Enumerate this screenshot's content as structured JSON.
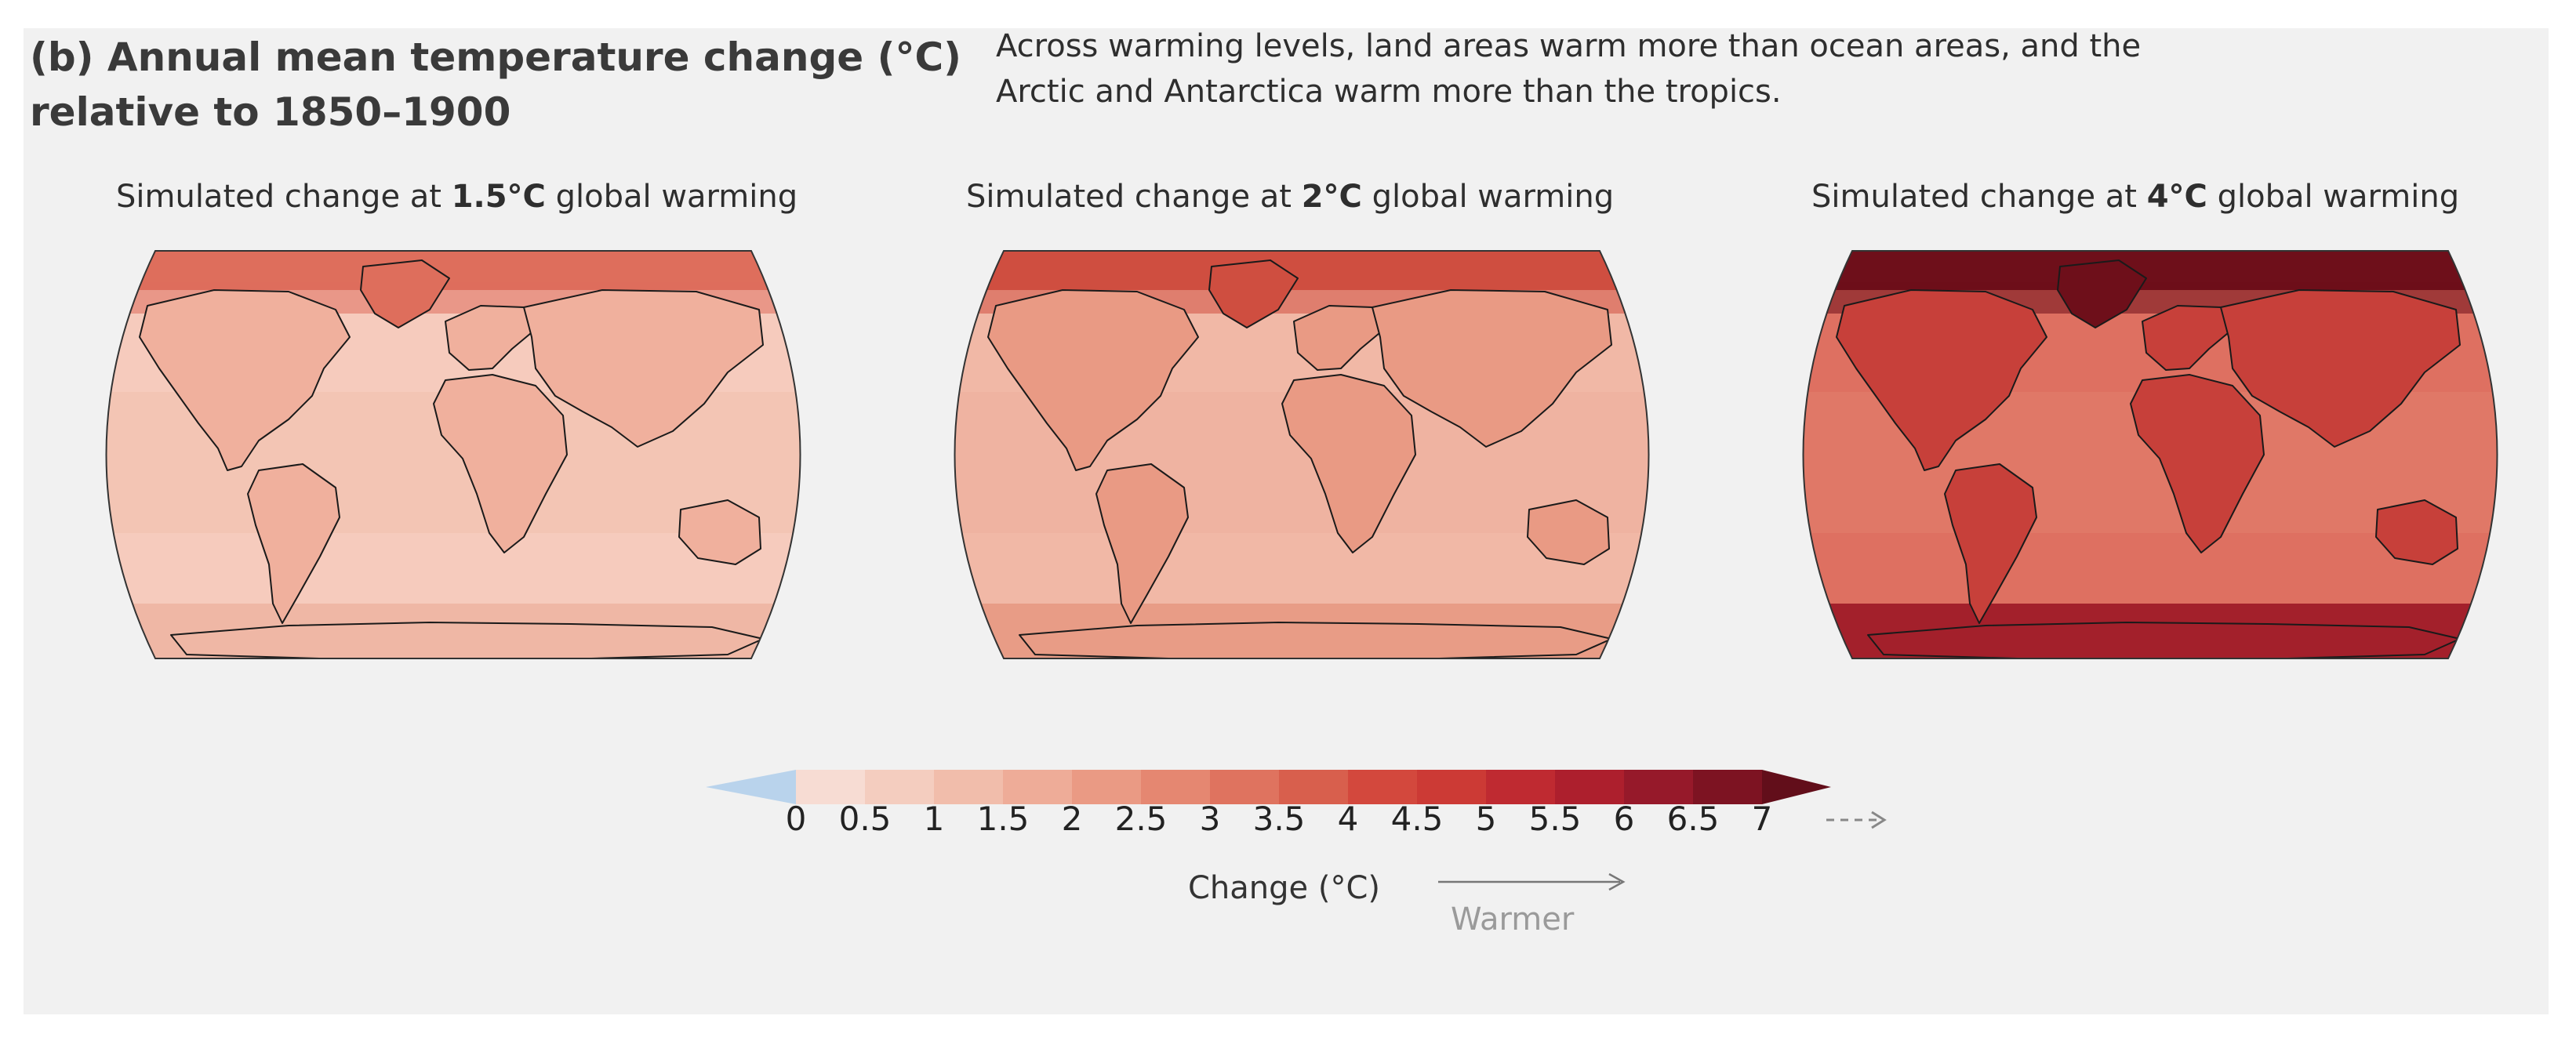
{
  "title": {
    "line1": "(b) Annual mean temperature change (°C)",
    "line2": "relative to 1850–1900"
  },
  "caption": {
    "line1": "Across warming levels, land areas warm more than ocean areas, and the",
    "line2": "Arctic and Antarctica warm more than the tropics."
  },
  "maps": [
    {
      "label_prefix": "Simulated change at ",
      "label_level": "1.5°C",
      "label_suffix": " global warming",
      "warming_level_c": 1.5,
      "colors": {
        "ocean": "#f6cbbd",
        "tropic_ocean": "#f3c3b2",
        "land": "#f0b09d",
        "arctic": "#de6e5c",
        "antarctic": "#efb7a5"
      }
    },
    {
      "label_prefix": "Simulated change at ",
      "label_level": "2°C",
      "label_suffix": " global warming",
      "warming_level_c": 2,
      "colors": {
        "ocean": "#f1b8a6",
        "tropic_ocean": "#efb2a0",
        "land": "#e99a84",
        "arctic": "#cf4e40",
        "antarctic": "#e89c86"
      }
    },
    {
      "label_prefix": "Simulated change at ",
      "label_level": "4°C",
      "label_suffix": " global warming",
      "warming_level_c": 4,
      "colors": {
        "ocean": "#de7061",
        "tropic_ocean": "#e07a69",
        "land": "#c7403a",
        "arctic": "#6e0f1a",
        "antarctic": "#a3202b"
      }
    }
  ],
  "colorbar": {
    "title": "Change (°C)",
    "direction_label": "Warmer",
    "ticks": [
      "0",
      "0.5",
      "1",
      "1.5",
      "2",
      "2.5",
      "3",
      "3.5",
      "4",
      "4.5",
      "5",
      "5.5",
      "6",
      "6.5",
      "7"
    ],
    "below_color": "#b9d3ec",
    "colors": [
      "#f7dcd3",
      "#f4cdbf",
      "#f1bdab",
      "#eeac98",
      "#ea9a84",
      "#e58771",
      "#df735f",
      "#d85f4d",
      "#d3483d",
      "#cc3a35",
      "#bf2a31",
      "#ad1f2d",
      "#96192a",
      "#7d1322",
      "#620e1a"
    ]
  }
}
